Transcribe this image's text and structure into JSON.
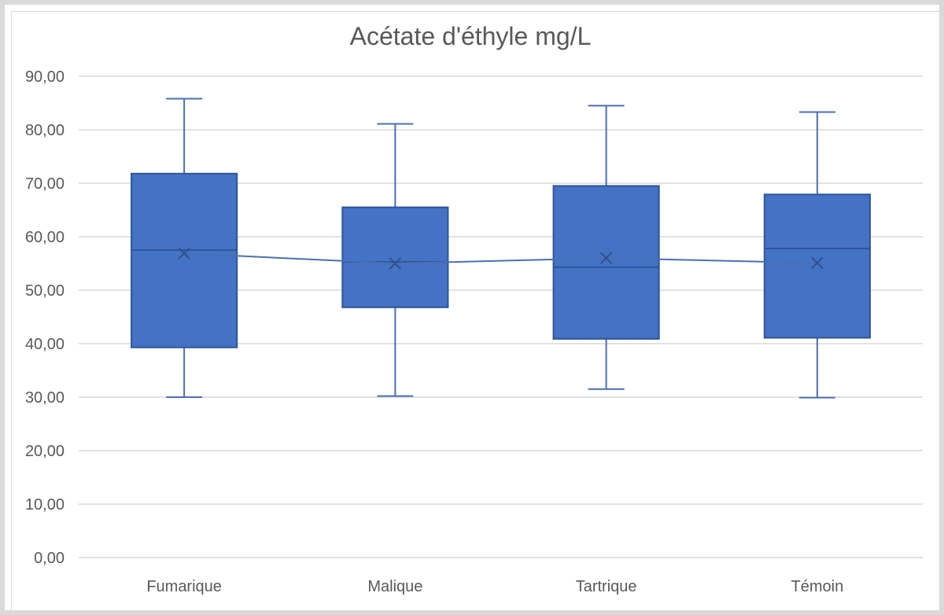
{
  "chart_data": {
    "type": "boxplot",
    "title": "Acétate d'éthyle mg/L",
    "xlabel": "",
    "ylabel": "",
    "ylim": [
      0,
      90
    ],
    "yticks": [
      0,
      10,
      20,
      30,
      40,
      50,
      60,
      70,
      80,
      90
    ],
    "ytick_labels": [
      "0,00",
      "10,00",
      "20,00",
      "30,00",
      "40,00",
      "50,00",
      "60,00",
      "70,00",
      "80,00",
      "90,00"
    ],
    "categories": [
      "Fumarique",
      "Malique",
      "Tartrique",
      "Témoin"
    ],
    "series": [
      {
        "name": "Fumarique",
        "min": 30.0,
        "q1": 39.3,
        "median": 57.5,
        "q3": 71.8,
        "max": 85.8,
        "mean": 56.9
      },
      {
        "name": "Malique",
        "min": 30.2,
        "q1": 46.8,
        "median": 55.3,
        "q3": 65.5,
        "max": 81.1,
        "mean": 55.0
      },
      {
        "name": "Tartrique",
        "min": 31.5,
        "q1": 40.9,
        "median": 54.3,
        "q3": 69.5,
        "max": 84.5,
        "mean": 56.0
      },
      {
        "name": "Témoin",
        "min": 29.9,
        "q1": 41.1,
        "median": 57.8,
        "q3": 67.9,
        "max": 83.3,
        "mean": 55.1
      }
    ],
    "mean_line": true,
    "grid": true,
    "legend": "none",
    "colors": {
      "box_fill": "#4472c4",
      "box_stroke": "#2f5597",
      "line": "#4a6fb5",
      "grid": "#d9d9d9",
      "text": "#595959"
    }
  }
}
